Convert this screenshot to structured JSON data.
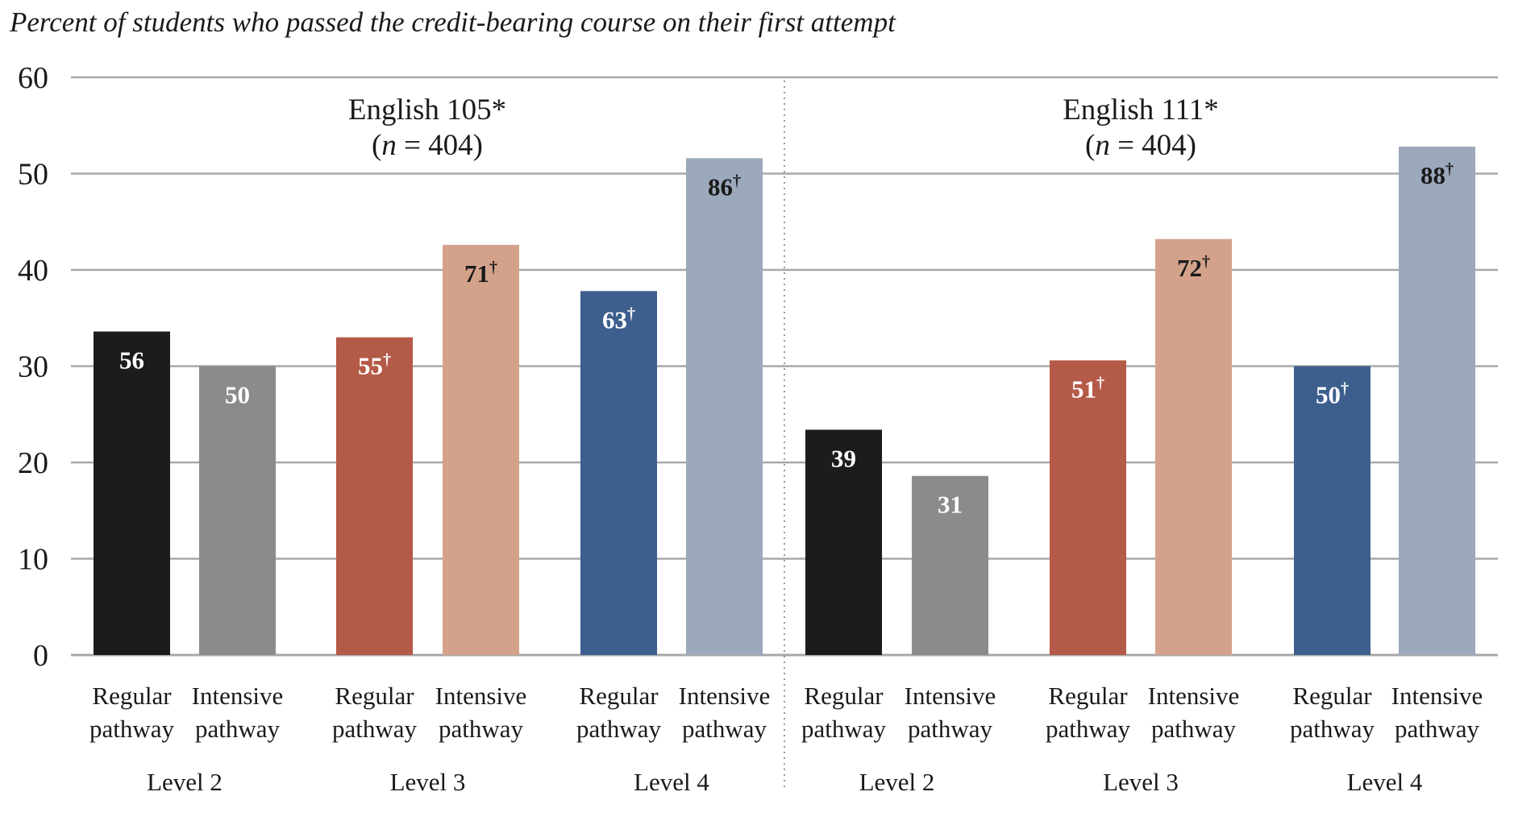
{
  "chart_data": {
    "type": "bar",
    "title": "Percent of students who passed the credit-bearing course on their first attempt",
    "xlabel": "",
    "ylabel": "",
    "ylim": [
      0,
      60
    ],
    "yticks": [
      "0",
      "10",
      "20",
      "30",
      "40",
      "50",
      "60"
    ],
    "grid": true,
    "note": "Bar heights are drawn at 60% of the printed value relative to the 0-60 axis",
    "groups": [
      {
        "title": "English 105*",
        "n_label_prefix": "(",
        "n_label_n": "n",
        "n_label_rest": " = 404)",
        "levels": [
          {
            "label": "Level 2",
            "bars": [
              {
                "line1": "Regular",
                "line2": "pathway",
                "value": 56,
                "value_label": "56",
                "dagger": "",
                "color": "#1c1c1c",
                "text_color": "#ffffff"
              },
              {
                "line1": "Intensive",
                "line2": "pathway",
                "value": 50,
                "value_label": "50",
                "dagger": "",
                "color": "#8b8b8b",
                "text_color": "#ffffff"
              }
            ]
          },
          {
            "label": "Level 3",
            "bars": [
              {
                "line1": "Regular",
                "line2": "pathway",
                "value": 55,
                "value_label": "55",
                "dagger": "†",
                "color": "#b45a48",
                "text_color": "#ffffff"
              },
              {
                "line1": "Intensive",
                "line2": "pathway",
                "value": 71,
                "value_label": "71",
                "dagger": "†",
                "color": "#d4a28a",
                "text_color": "#1a1a1a"
              }
            ]
          },
          {
            "label": "Level 4",
            "bars": [
              {
                "line1": "Regular",
                "line2": "pathway",
                "value": 63,
                "value_label": "63",
                "dagger": "†",
                "color": "#3d5f8e",
                "text_color": "#ffffff"
              },
              {
                "line1": "Intensive",
                "line2": "pathway",
                "value": 86,
                "value_label": "86",
                "dagger": "†",
                "color": "#9ca8bc",
                "text_color": "#1a1a1a"
              }
            ]
          }
        ]
      },
      {
        "title": "English 111*",
        "n_label_prefix": "(",
        "n_label_n": "n",
        "n_label_rest": " = 404)",
        "levels": [
          {
            "label": "Level 2",
            "bars": [
              {
                "line1": "Regular",
                "line2": "pathway",
                "value": 39,
                "value_label": "39",
                "dagger": "",
                "color": "#1c1c1c",
                "text_color": "#ffffff"
              },
              {
                "line1": "Intensive",
                "line2": "pathway",
                "value": 31,
                "value_label": "31",
                "dagger": "",
                "color": "#8b8b8b",
                "text_color": "#ffffff"
              }
            ]
          },
          {
            "label": "Level 3",
            "bars": [
              {
                "line1": "Regular",
                "line2": "pathway",
                "value": 51,
                "value_label": "51",
                "dagger": "†",
                "color": "#b45a48",
                "text_color": "#ffffff"
              },
              {
                "line1": "Intensive",
                "line2": "pathway",
                "value": 72,
                "value_label": "72",
                "dagger": "†",
                "color": "#d4a28a",
                "text_color": "#1a1a1a"
              }
            ]
          },
          {
            "label": "Level 4",
            "bars": [
              {
                "line1": "Regular",
                "line2": "pathway",
                "value": 50,
                "value_label": "50",
                "dagger": "†",
                "color": "#3d5f8e",
                "text_color": "#ffffff"
              },
              {
                "line1": "Intensive",
                "line2": "pathway",
                "value": 88,
                "value_label": "88",
                "dagger": "†",
                "color": "#9ca8bc",
                "text_color": "#1a1a1a"
              }
            ]
          }
        ]
      }
    ]
  }
}
